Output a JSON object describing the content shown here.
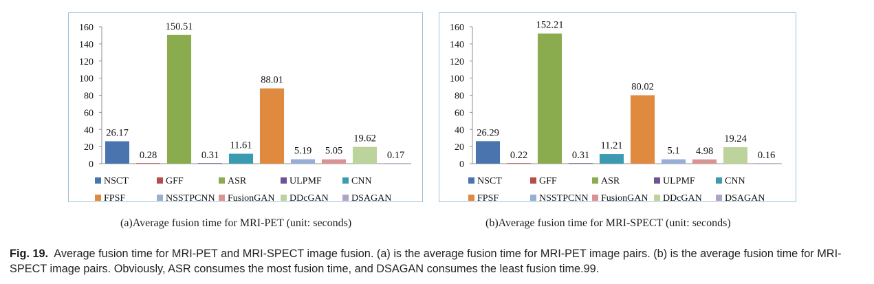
{
  "chart_data": [
    {
      "type": "bar",
      "categories": [
        "NSCT",
        "GFF",
        "ASR",
        "ULPMF",
        "CNN",
        "FPSF",
        "NSSTPCNN",
        "FusionGAN",
        "DDcGAN",
        "DSAGAN"
      ],
      "values": [
        26.17,
        0.28,
        150.51,
        0.31,
        11.61,
        88.01,
        5.19,
        5.05,
        19.62,
        0.17
      ],
      "value_labels": [
        "26.17",
        "0.28",
        "150.51",
        "0.31",
        "11.61",
        "88.01",
        "5.19",
        "5.05",
        "19.62",
        "0.17"
      ],
      "colors": [
        "#4a74ad",
        "#b84c48",
        "#8aac4f",
        "#6e5496",
        "#3b9bb0",
        "#e08a3f",
        "#98aed7",
        "#d99392",
        "#bdd39c",
        "#b0a2c9"
      ],
      "ylim": [
        0,
        160
      ],
      "yticks": [
        "0",
        "20",
        "40",
        "60",
        "80",
        "100",
        "120",
        "140",
        "160"
      ],
      "legend_position": "bottom",
      "caption": "(a)Average fusion time for MRI-PET (unit: seconds)"
    },
    {
      "type": "bar",
      "categories": [
        "NSCT",
        "GFF",
        "ASR",
        "ULPMF",
        "CNN",
        "FPSF",
        "NSSTPCNN",
        "FusionGAN",
        "DDcGAN",
        "DSAGAN"
      ],
      "values": [
        26.29,
        0.22,
        152.21,
        0.31,
        11.21,
        80.02,
        5.1,
        4.98,
        19.24,
        0.16
      ],
      "value_labels": [
        "26.29",
        "0.22",
        "152.21",
        "0.31",
        "11.21",
        "80.02",
        "5.1",
        "4.98",
        "19.24",
        "0.16"
      ],
      "colors": [
        "#4a74ad",
        "#b84c48",
        "#8aac4f",
        "#6e5496",
        "#3b9bb0",
        "#e08a3f",
        "#98aed7",
        "#d99392",
        "#bdd39c",
        "#b0a2c9"
      ],
      "ylim": [
        0,
        160
      ],
      "yticks": [
        "0",
        "20",
        "40",
        "60",
        "80",
        "100",
        "120",
        "140",
        "160"
      ],
      "legend_position": "bottom",
      "caption": "(b)Average fusion time for MRI-SPECT (unit: seconds)"
    }
  ],
  "figure_caption": {
    "label": "Fig. 19.",
    "text": "Average fusion time for MRI-PET and MRI-SPECT image fusion. (a) is the average fusion time for MRI-PET image pairs. (b) is the average fusion time for MRI-SPECT image pairs. Obviously, ASR consumes the most fusion time, and DSAGAN consumes the least fusion time.99."
  }
}
